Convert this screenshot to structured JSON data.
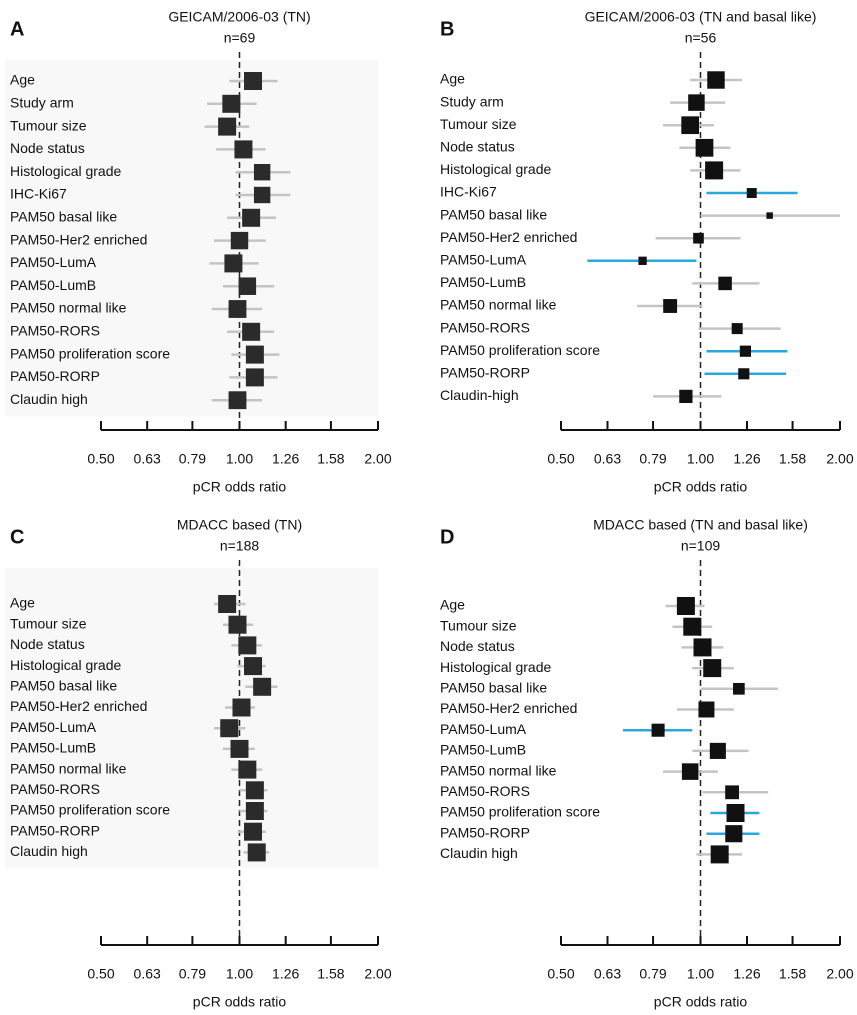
{
  "chart_data": [
    {
      "type": "forest",
      "panel": "A",
      "title": "GEICAM/2006-03 (TN)",
      "subtitle": "n=69",
      "x_label": "pCR odds ratio",
      "categories": [
        "Age",
        "Study arm",
        "Tumour size",
        "Node status",
        "Histological grade",
        "IHC-Ki67",
        "PAM50 basal like",
        "PAM50-Her2 enriched",
        "PAM50-LumA",
        "PAM50-LumB",
        "PAM50 normal like",
        "PAM50-RORS",
        "PAM50 proliferation score",
        "PAM50-RORP",
        "Claudin high"
      ],
      "values": [
        1.07,
        0.96,
        0.94,
        1.02,
        1.12,
        1.12,
        1.06,
        1.0,
        0.97,
        1.04,
        0.99,
        1.06,
        1.08,
        1.08,
        0.99
      ],
      "lower": [
        0.95,
        0.85,
        0.84,
        0.89,
        0.98,
        0.98,
        0.94,
        0.88,
        0.86,
        0.92,
        0.87,
        0.94,
        0.96,
        0.95,
        0.87
      ],
      "upper": [
        1.21,
        1.09,
        1.05,
        1.14,
        1.29,
        1.29,
        1.2,
        1.14,
        1.1,
        1.19,
        1.12,
        1.19,
        1.22,
        1.21,
        1.12
      ],
      "ci_colors": [
        "#c4c4c4",
        "#c4c4c4",
        "#c4c4c4",
        "#c4c4c4",
        "#c4c4c4",
        "#c4c4c4",
        "#c4c4c4",
        "#c4c4c4",
        "#c4c4c4",
        "#c4c4c4",
        "#c4c4c4",
        "#c4c4c4",
        "#c4c4c4",
        "#c4c4c4",
        "#c4c4c4"
      ],
      "marker_color": "#2b2b2b",
      "background": "#f8f8f8",
      "log_scale": true,
      "reference_line": 1,
      "xlim": [
        0.5,
        2.0
      ],
      "xticks": [
        {
          "value": 0.5,
          "label": "0.50"
        },
        0.63,
        0.79,
        {
          "value": 1.0,
          "label": "1.00"
        },
        1.26,
        1.58,
        {
          "value": 2.0,
          "label": "2.00"
        }
      ]
    },
    {
      "type": "forest",
      "panel": "B",
      "title": "GEICAM/2006-03 (TN and basal like)",
      "subtitle": "n=56",
      "x_label": "pCR odds ratio",
      "categories": [
        "Age",
        "Study arm",
        "Tumour size",
        "Node status",
        "Histological grade",
        "IHC-Ki67",
        "PAM50 basal like",
        "PAM50-Her2 enriched",
        "PAM50-LumA",
        "PAM50-LumB",
        "PAM50 normal like",
        "PAM50-RORS",
        "PAM50 proliferation score",
        "PAM50-RORP",
        "Claudin-high"
      ],
      "values": [
        1.08,
        0.98,
        0.95,
        1.02,
        1.07,
        1.29,
        1.41,
        0.99,
        0.75,
        1.13,
        0.86,
        1.2,
        1.25,
        1.24,
        0.93
      ],
      "lower": [
        0.95,
        0.86,
        0.83,
        0.9,
        0.95,
        1.03,
        1.0,
        0.8,
        0.57,
        0.96,
        0.73,
        0.99,
        1.03,
        1.02,
        0.79
      ],
      "upper": [
        1.23,
        1.13,
        1.07,
        1.16,
        1.22,
        1.62,
        2.0,
        1.22,
        0.98,
        1.34,
        1.01,
        1.49,
        1.54,
        1.53,
        1.11
      ],
      "ci_colors": [
        "#c4c4c4",
        "#c4c4c4",
        "#c4c4c4",
        "#c4c4c4",
        "#c4c4c4",
        "#29a8e0",
        "#c4c4c4",
        "#c4c4c4",
        "#29a8e0",
        "#c4c4c4",
        "#c4c4c4",
        "#c4c4c4",
        "#29a8e0",
        "#29a8e0",
        "#c4c4c4"
      ],
      "marker_color": "#111111",
      "log_scale": true,
      "reference_line": 1,
      "xlim": [
        0.5,
        2.0
      ],
      "xticks": [
        {
          "value": 0.5,
          "label": "0.50"
        },
        0.63,
        0.79,
        {
          "value": 1.0,
          "label": "1.00"
        },
        1.26,
        1.58,
        {
          "value": 2.0,
          "label": "2.00"
        }
      ]
    },
    {
      "type": "forest",
      "panel": "C",
      "title": "MDACC based (TN)",
      "subtitle": "n=188",
      "x_label": "pCR odds ratio",
      "categories": [
        "Age",
        "Tumour size",
        "Node status",
        "Histological grade",
        "PAM50 basal like",
        "PAM50-Her2 enriched",
        "PAM50-LumA",
        "PAM50-LumB",
        "PAM50 normal like",
        "PAM50-RORS",
        "PAM50 proliferation score",
        "PAM50-RORP",
        "Claudin high"
      ],
      "values": [
        0.94,
        0.99,
        1.04,
        1.07,
        1.12,
        1.01,
        0.95,
        1.0,
        1.04,
        1.08,
        1.08,
        1.07,
        1.09
      ],
      "lower": [
        0.88,
        0.92,
        0.96,
        0.99,
        1.03,
        0.93,
        0.88,
        0.92,
        0.96,
        1.0,
        1.0,
        0.99,
        1.02
      ],
      "upper": [
        1.03,
        1.07,
        1.12,
        1.14,
        1.21,
        1.08,
        1.03,
        1.08,
        1.12,
        1.15,
        1.15,
        1.14,
        1.16
      ],
      "ci_colors": [
        "#c4c4c4",
        "#c4c4c4",
        "#c4c4c4",
        "#c4c4c4",
        "#c4c4c4",
        "#c4c4c4",
        "#c4c4c4",
        "#c4c4c4",
        "#c4c4c4",
        "#c4c4c4",
        "#c4c4c4",
        "#c4c4c4",
        "#c4c4c4"
      ],
      "marker_color": "#2b2b2b",
      "background": "#f8f8f8",
      "log_scale": true,
      "reference_line": 1,
      "xlim": [
        0.5,
        2.0
      ],
      "xticks": [
        {
          "value": 0.5,
          "label": "0.50"
        },
        0.63,
        0.79,
        {
          "value": 1.0,
          "label": "1.00"
        },
        1.26,
        1.58,
        {
          "value": 2.0,
          "label": "2.00"
        }
      ]
    },
    {
      "type": "forest",
      "panel": "D",
      "title": "MDACC based (TN and basal like)",
      "subtitle": "n=109",
      "x_label": "pCR odds ratio",
      "categories": [
        "Age",
        "Tumour size",
        "Node status",
        "Histological grade",
        "PAM50 basal like",
        "PAM50-Her2 enriched",
        "PAM50-LumA",
        "PAM50-LumB",
        "PAM50 normal like",
        "PAM50-RORS",
        "PAM50 proliferation score",
        "PAM50-RORP",
        "Claudin high"
      ],
      "values": [
        0.93,
        0.96,
        1.01,
        1.06,
        1.21,
        1.03,
        0.81,
        1.09,
        0.95,
        1.17,
        1.19,
        1.18,
        1.1
      ],
      "lower": [
        0.84,
        0.87,
        0.91,
        0.96,
        1.0,
        0.89,
        0.68,
        0.96,
        0.83,
        1.01,
        1.05,
        1.03,
        0.98
      ],
      "upper": [
        1.02,
        1.06,
        1.12,
        1.18,
        1.47,
        1.18,
        0.96,
        1.27,
        1.09,
        1.4,
        1.34,
        1.34,
        1.23
      ],
      "ci_colors": [
        "#c4c4c4",
        "#c4c4c4",
        "#c4c4c4",
        "#c4c4c4",
        "#c4c4c4",
        "#c4c4c4",
        "#29a8e0",
        "#c4c4c4",
        "#c4c4c4",
        "#c4c4c4",
        "#29a8e0",
        "#29a8e0",
        "#c4c4c4"
      ],
      "marker_color": "#111111",
      "log_scale": true,
      "reference_line": 1,
      "xlim": [
        0.5,
        2.0
      ],
      "xticks": [
        {
          "value": 0.5,
          "label": "0.50"
        },
        0.63,
        0.79,
        {
          "value": 1.0,
          "label": "1.00"
        },
        1.26,
        1.58,
        {
          "value": 2.0,
          "label": "2.00"
        }
      ]
    }
  ]
}
